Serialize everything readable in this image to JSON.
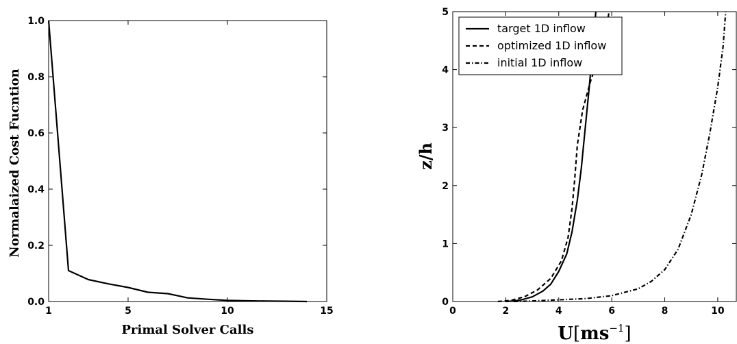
{
  "chart_data": [
    {
      "type": "line",
      "xlabel": "Primal Solver Calls",
      "ylabel": "Normalaized Cost Fucntion",
      "xlim": [
        1,
        15
      ],
      "ylim": [
        0,
        1
      ],
      "xticks": [
        1,
        5,
        10,
        15
      ],
      "yticks": [
        0.0,
        0.2,
        0.4,
        0.6,
        0.8,
        1.0
      ],
      "xtick_labels": [
        "1",
        "5",
        "10",
        "15"
      ],
      "ytick_labels": [
        "0.0",
        "0.2",
        "0.4",
        "0.6",
        "0.8",
        "1.0"
      ],
      "grid": false,
      "series": [
        {
          "x": [
            1,
            2,
            3,
            4,
            5,
            6,
            7,
            8,
            9,
            10,
            11,
            12,
            13,
            14
          ],
          "values": [
            1.0,
            0.11,
            0.078,
            0.063,
            0.05,
            0.033,
            0.028,
            0.013,
            0.008,
            0.004,
            0.0025,
            0.0015,
            0.001,
            0.0
          ],
          "style": "solid",
          "color": "#000000"
        }
      ]
    },
    {
      "type": "line",
      "xlabel_base": "U",
      "xlabel_unit": "ms",
      "xlabel_exp": "−1",
      "ylabel": "z/h",
      "xlim": [
        0,
        10.7
      ],
      "ylim": [
        0,
        5
      ],
      "xticks": [
        0,
        2,
        4,
        6,
        8,
        10
      ],
      "yticks": [
        0,
        1,
        2,
        3,
        4,
        5
      ],
      "xtick_labels": [
        "0",
        "2",
        "4",
        "6",
        "8",
        "10"
      ],
      "ytick_labels": [
        "0",
        "1",
        "2",
        "3",
        "4",
        "5"
      ],
      "grid": false,
      "legend_position": "top-left",
      "series": [
        {
          "name": "target 1D inflow",
          "style": "solid",
          "color": "#000000",
          "x": [
            2.0,
            2.3,
            2.6,
            3.0,
            3.4,
            3.7,
            4.0,
            4.3,
            4.5,
            4.7,
            4.85,
            5.0,
            5.15,
            5.3,
            5.4
          ],
          "y": [
            0.0,
            0.01,
            0.03,
            0.08,
            0.18,
            0.3,
            0.52,
            0.82,
            1.2,
            1.75,
            2.3,
            3.0,
            3.7,
            4.45,
            5.0
          ]
        },
        {
          "name": "optimized 1D inflow",
          "style": "dashed",
          "color": "#000000",
          "x": [
            1.7,
            2.2,
            2.7,
            3.2,
            3.7,
            4.1,
            4.35,
            4.5,
            4.6,
            4.7,
            4.9,
            5.2,
            5.5,
            5.75,
            5.9
          ],
          "y": [
            0.0,
            0.02,
            0.08,
            0.2,
            0.4,
            0.7,
            1.1,
            1.6,
            2.1,
            2.7,
            3.3,
            3.8,
            4.2,
            4.6,
            5.0
          ]
        },
        {
          "name": "initial 1D inflow",
          "style": "dash-dot",
          "color": "#000000",
          "x": [
            2.3,
            3.0,
            4.0,
            5.0,
            6.0,
            7.0,
            7.5,
            8.0,
            8.5,
            9.0,
            9.4,
            9.7,
            10.0,
            10.2,
            10.3
          ],
          "y": [
            0.0,
            0.01,
            0.03,
            0.05,
            0.1,
            0.22,
            0.35,
            0.55,
            0.9,
            1.5,
            2.2,
            2.9,
            3.7,
            4.4,
            5.0
          ]
        }
      ]
    }
  ]
}
